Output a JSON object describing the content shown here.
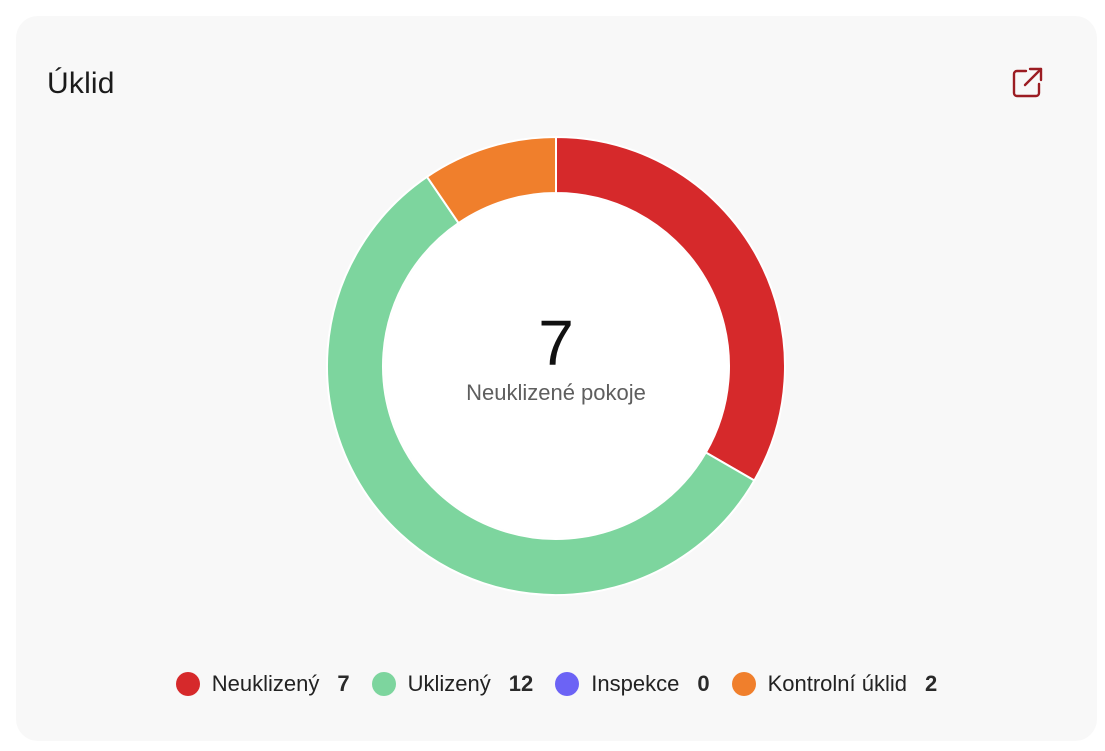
{
  "card": {
    "title": "Úklid",
    "open_icon": "external-link-icon"
  },
  "colors": {
    "card_bg": "#f8f8f8",
    "accent_icon": "#9b1c22"
  },
  "chart_data": {
    "type": "pie",
    "style": "donut",
    "center_value": "7",
    "center_label": "Neuklizené pokoje",
    "categories": [
      "Neuklizený",
      "Uklizený",
      "Inspekce",
      "Kontrolní úklid"
    ],
    "values": [
      7,
      12,
      0,
      2
    ],
    "colors": [
      "#d6292b",
      "#7dd59e",
      "#6c63f5",
      "#f07f2c"
    ],
    "legend_position": "bottom"
  },
  "legend": [
    {
      "label": "Neuklizený",
      "count": "7",
      "color": "#d6292b"
    },
    {
      "label": "Uklizený",
      "count": "12",
      "color": "#7dd59e"
    },
    {
      "label": "Inspekce",
      "count": "0",
      "color": "#6c63f5"
    },
    {
      "label": "Kontrolní úklid",
      "count": "2",
      "color": "#f07f2c"
    }
  ]
}
